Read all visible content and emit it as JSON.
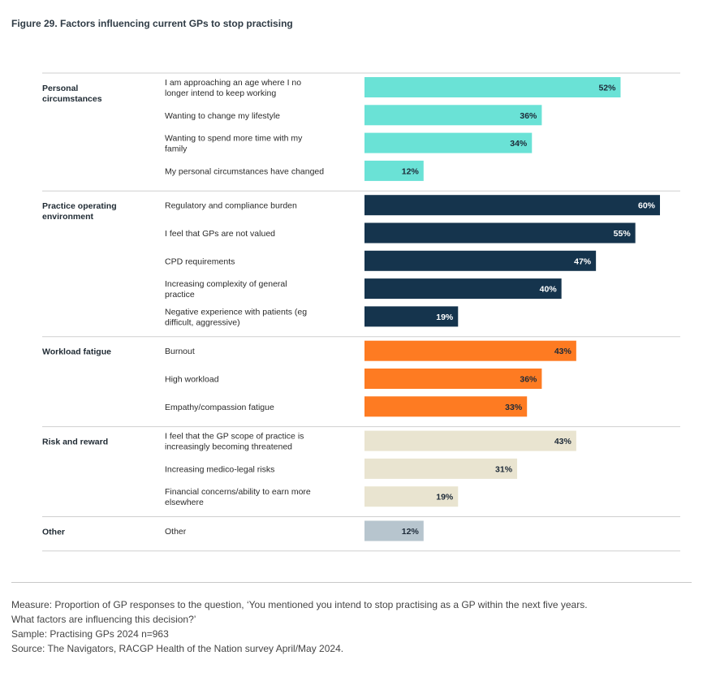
{
  "figure_title": "Figure 29. Factors influencing current GPs to stop practising",
  "chart_data": {
    "type": "bar",
    "orientation": "horizontal",
    "xlim": [
      0,
      60
    ],
    "unit": "%",
    "groups": [
      {
        "name": "Personal circumstances",
        "color": "#6ae2d6",
        "label_color": "#1d2a38",
        "items": [
          {
            "label": "I am approaching an age where I no longer intend to keep working",
            "value": 52
          },
          {
            "label": "Wanting to change my lifestyle",
            "value": 36
          },
          {
            "label": "Wanting to spend more time with my family",
            "value": 34
          },
          {
            "label": "My personal circumstances have changed",
            "value": 12
          }
        ]
      },
      {
        "name": "Practice operating environment",
        "color": "#15344d",
        "label_color": "#ffffff",
        "items": [
          {
            "label": "Regulatory and compliance burden",
            "value": 60
          },
          {
            "label": "I feel that GPs are not valued",
            "value": 55
          },
          {
            "label": "CPD requirements",
            "value": 47
          },
          {
            "label": "Increasing complexity of general practice",
            "value": 40
          },
          {
            "label": "Negative experience with patients (eg difficult, aggressive)",
            "value": 19
          }
        ]
      },
      {
        "name": "Workload fatigue",
        "color": "#fe7b22",
        "label_color": "#1d2a38",
        "items": [
          {
            "label": "Burnout",
            "value": 43
          },
          {
            "label": "High workload",
            "value": 36
          },
          {
            "label": "Empathy/compassion fatigue",
            "value": 33
          }
        ]
      },
      {
        "name": "Risk and reward",
        "color": "#e9e4d0",
        "label_color": "#1d2a38",
        "items": [
          {
            "label": "I feel that the GP scope of practice is increasingly becoming threatened",
            "value": 43
          },
          {
            "label": "Increasing medico-legal risks",
            "value": 31
          },
          {
            "label": "Financial concerns/ability to earn more elsewhere",
            "value": 19
          }
        ]
      },
      {
        "name": "Other",
        "color": "#b7c5ce",
        "label_color": "#1d2a38",
        "items": [
          {
            "label": "Other",
            "value": 12
          }
        ]
      }
    ]
  },
  "notes": {
    "measure_line1": "Measure: Proportion of GP responses to the question, ‘You mentioned you intend to stop practising as a GP within the next five years.",
    "measure_line2": "What factors are influencing this decision?’",
    "sample": "Sample: Practising GPs 2024 n=963",
    "source": "Source: The Navigators, RACGP Health of the Nation survey April/May 2024."
  }
}
